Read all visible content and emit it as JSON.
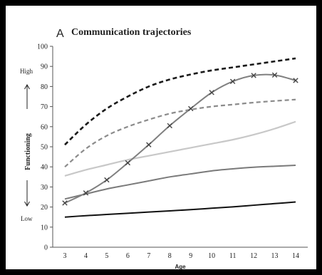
{
  "panel": {
    "letter": "A"
  },
  "chart_data": {
    "type": "line",
    "title": "Communication trajectories",
    "xlabel": "Age",
    "ylabel": "Functioning",
    "ylabel_high": "High",
    "ylabel_low": "Low",
    "xlim": [
      3,
      14
    ],
    "ylim": [
      0,
      100
    ],
    "x": [
      3,
      4,
      5,
      6,
      7,
      8,
      9,
      10,
      11,
      12,
      13,
      14
    ],
    "yticks": [
      0,
      10,
      20,
      30,
      40,
      50,
      60,
      70,
      80,
      90,
      100
    ],
    "grid": false,
    "legend": "none",
    "series": [
      {
        "values": [
          51,
          61,
          69,
          75,
          80,
          83.5,
          86,
          88,
          89.5,
          91,
          92.5,
          94
        ],
        "color": "#1a1a1a",
        "style": "dashed",
        "width": 2.6
      },
      {
        "values": [
          40,
          49,
          55.5,
          60,
          63.5,
          66.5,
          68.5,
          70,
          71,
          72,
          72.8,
          73.5
        ],
        "color": "#8c8c8c",
        "style": "dashed",
        "width": 2.2
      },
      {
        "values": [
          35.5,
          38.5,
          41,
          43.5,
          45.5,
          47.5,
          49.5,
          51.5,
          53.5,
          56,
          59,
          62.5
        ],
        "color": "#c8c8c8",
        "style": "solid",
        "width": 2.2
      },
      {
        "values": [
          24,
          26.5,
          29,
          31,
          33,
          35,
          36.5,
          38,
          39,
          39.8,
          40.3,
          40.8
        ],
        "color": "#7a7a7a",
        "style": "solid",
        "width": 2.0
      },
      {
        "values": [
          15,
          15.7,
          16.3,
          16.9,
          17.5,
          18.1,
          18.7,
          19.4,
          20.1,
          20.9,
          21.7,
          22.5
        ],
        "color": "#111111",
        "style": "solid",
        "width": 2.0
      },
      {
        "values": [
          22,
          27,
          33.5,
          42,
          51,
          60.5,
          69,
          77,
          82.5,
          85.5,
          85.7,
          83
        ],
        "color": "#808080",
        "style": "solid",
        "width": 2.0,
        "marker": "x"
      }
    ]
  }
}
